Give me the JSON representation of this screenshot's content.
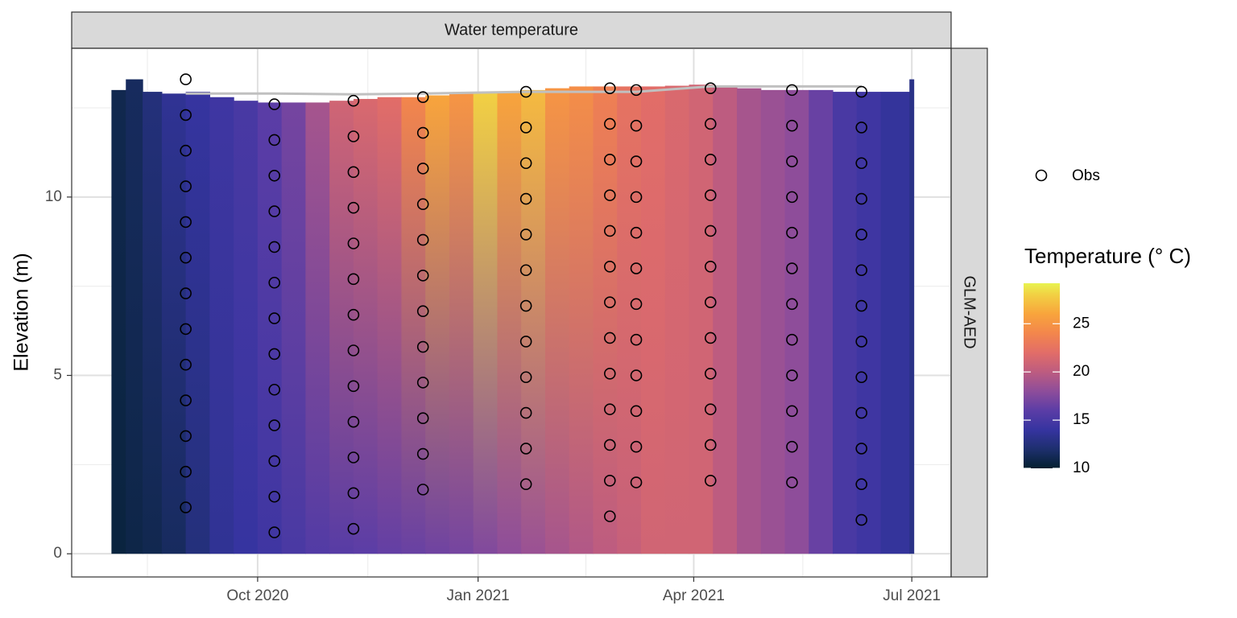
{
  "chart_data": {
    "type": "heatmap",
    "strip_title": "Water temperature",
    "facet_label": "GLM-AED",
    "y_label": "Elevation (m)",
    "xlim": [
      -77.6,
      289.4
    ],
    "xticks": [
      {
        "value": 0,
        "label": "Oct 2020"
      },
      {
        "value": 92,
        "label": "Jan 2021"
      },
      {
        "value": 182,
        "label": "Apr 2021"
      },
      {
        "value": 273,
        "label": "Jul 2021"
      }
    ],
    "x_minor_ticks": [
      -46,
      46,
      137,
      227.5
    ],
    "ylim": [
      -0.65,
      14.17
    ],
    "yticks": [
      0,
      5,
      10
    ],
    "y_minor_ticks": [
      2.5,
      7.5,
      12.5
    ],
    "grid": true,
    "model": {
      "x": [
        -61,
        -55,
        -48,
        -40,
        -30,
        -20,
        -10,
        0,
        10,
        20,
        30,
        40,
        50,
        60,
        70,
        80,
        90,
        100,
        110,
        120,
        130,
        140,
        150,
        160,
        170,
        180,
        190,
        200,
        210,
        220,
        230,
        240,
        250,
        260,
        272
      ],
      "surface": [
        13.0,
        13.3,
        12.95,
        12.9,
        12.95,
        12.8,
        12.7,
        12.65,
        12.65,
        12.65,
        12.7,
        12.75,
        12.8,
        12.8,
        12.85,
        12.9,
        12.95,
        12.95,
        13.0,
        13.05,
        13.1,
        13.1,
        13.1,
        13.1,
        13.12,
        13.15,
        13.1,
        13.05,
        13.0,
        13.0,
        13.0,
        12.95,
        12.95,
        12.95,
        13.3
      ],
      "temp_top": [
        11,
        11.5,
        12.5,
        13.5,
        14,
        14.5,
        15,
        16,
        17,
        19,
        21,
        21.5,
        22,
        24,
        26,
        25,
        28,
        26,
        27,
        25,
        24.5,
        23.5,
        22.5,
        22,
        21.5,
        21,
        20,
        19,
        18.5,
        18,
        16.5,
        15,
        14.5,
        13.8,
        13
      ],
      "temp_bottom": [
        10.5,
        10.8,
        11,
        11.5,
        12.5,
        13.5,
        14,
        14.5,
        15,
        15.5,
        15.8,
        16,
        16.3,
        16.5,
        16.8,
        17,
        17.5,
        18,
        18.5,
        19,
        19.5,
        20,
        20.5,
        21,
        21,
        21,
        20,
        19,
        18.5,
        18,
        16.5,
        15,
        14.5,
        13.8,
        13
      ]
    },
    "obs": {
      "name": "Obs",
      "x": [
        -30,
        7,
        40,
        69,
        112,
        147,
        158,
        189,
        223,
        252
      ],
      "elevations": [
        [
          13.3,
          12.3,
          11.3,
          10.3,
          9.3,
          8.3,
          7.3,
          6.3,
          5.3,
          4.3,
          3.3,
          2.3,
          1.3
        ],
        [
          12.6,
          11.6,
          10.6,
          9.6,
          8.6,
          7.6,
          6.6,
          5.6,
          4.6,
          3.6,
          2.6,
          1.6,
          0.6
        ],
        [
          12.7,
          11.7,
          10.7,
          9.7,
          8.7,
          7.7,
          6.7,
          5.7,
          4.7,
          3.7,
          2.7,
          1.7,
          0.7
        ],
        [
          12.8,
          11.8,
          10.8,
          9.8,
          8.8,
          7.8,
          6.8,
          5.8,
          4.8,
          3.8,
          2.8,
          1.8
        ],
        [
          12.95,
          11.95,
          10.95,
          9.95,
          8.95,
          7.95,
          6.95,
          5.95,
          4.95,
          3.95,
          2.95,
          1.95
        ],
        [
          13.05,
          12.05,
          11.05,
          10.05,
          9.05,
          8.05,
          7.05,
          6.05,
          5.05,
          4.05,
          3.05,
          2.05,
          1.05
        ],
        [
          13,
          12,
          11,
          10,
          9,
          8,
          7,
          6,
          5,
          4,
          3,
          2
        ],
        [
          13.05,
          12.05,
          11.05,
          10.05,
          9.05,
          8.05,
          7.05,
          6.05,
          5.05,
          4.05,
          3.05,
          2.05
        ],
        [
          13,
          12,
          11,
          10,
          9,
          8,
          7,
          6,
          5,
          4,
          3,
          2
        ],
        [
          12.95,
          11.95,
          10.95,
          9.95,
          8.95,
          7.95,
          6.95,
          5.95,
          4.95,
          3.95,
          2.95,
          1.95,
          0.95
        ]
      ]
    },
    "surface_line": {
      "color": "#c0c0c0",
      "x": [
        -30,
        7,
        40,
        69,
        112,
        147,
        158,
        189,
        223,
        252
      ],
      "values": [
        12.9,
        12.9,
        12.88,
        12.9,
        12.95,
        12.95,
        12.95,
        13.1,
        13.1,
        13.1
      ]
    },
    "colorbar": {
      "title": "Temperature (° C)",
      "lim": [
        10,
        29.2
      ],
      "ticks": [
        10,
        15,
        20,
        25
      ],
      "colorscale": [
        [
          10,
          "#03202f"
        ],
        [
          12,
          "#1e2f6e"
        ],
        [
          14,
          "#3634a0"
        ],
        [
          16,
          "#5b3da6"
        ],
        [
          18,
          "#8e4d9a"
        ],
        [
          20,
          "#bd5c80"
        ],
        [
          22,
          "#e26d68"
        ],
        [
          24,
          "#f3864c"
        ],
        [
          26,
          "#f8a43c"
        ],
        [
          28,
          "#f2d043"
        ],
        [
          29.2,
          "#e8f350"
        ]
      ]
    }
  }
}
